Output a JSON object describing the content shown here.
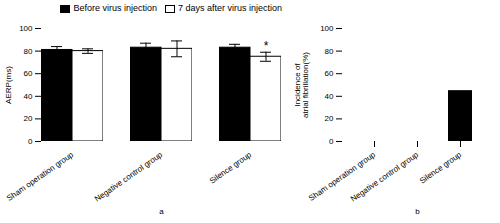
{
  "chart_data": [
    {
      "type": "bar",
      "xlabel": "a",
      "ylabel": "AERP(ms)",
      "categories": [
        "Sham operation group",
        "Negative control group",
        "Silence group"
      ],
      "series": [
        {
          "name": "Before virus injection",
          "color": "#000000",
          "values": [
            81,
            83,
            83
          ],
          "errors": [
            3,
            4,
            3
          ]
        },
        {
          "name": "7 days after virus injection",
          "color": "#ffffff",
          "values": [
            80,
            82,
            75
          ],
          "errors": [
            2,
            7,
            4
          ]
        }
      ],
      "annotations": [
        {
          "text": "*",
          "category": "Silence group",
          "series": "7 days after virus injection"
        }
      ],
      "ylim": [
        0,
        100
      ],
      "yticks": [
        0,
        20,
        40,
        60,
        80,
        100
      ],
      "legend": "upper right"
    },
    {
      "type": "bar",
      "xlabel": "b",
      "ylabel": "Incidence of\natrial fibrillation(%)",
      "categories": [
        "Sham operation group",
        "Negative control group",
        "Silence group"
      ],
      "values": [
        0,
        0,
        45
      ],
      "color": "#000000",
      "ylim": [
        0,
        100
      ],
      "yticks": [
        0,
        20,
        40,
        60,
        80,
        100
      ]
    }
  ]
}
